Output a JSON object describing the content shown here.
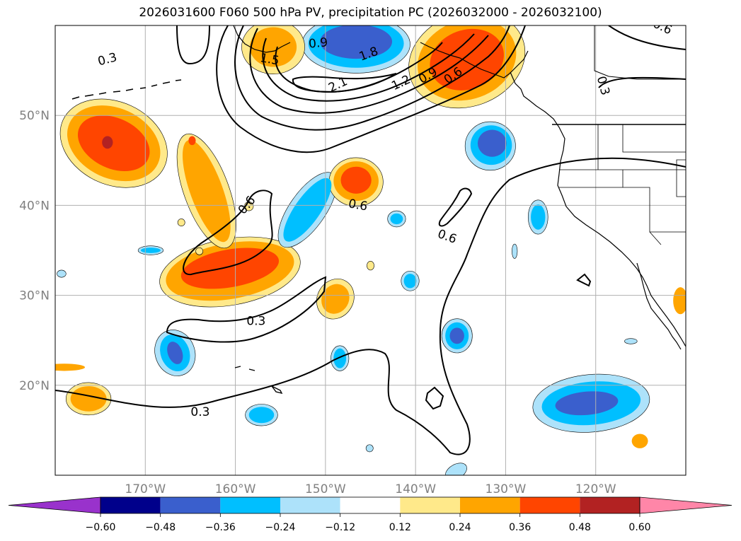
{
  "title": "2026031600 F060 500 hPa PV, precipitation PC (2026032000 - 2026032100)",
  "map": {
    "lon_range": [
      -180,
      -110
    ],
    "lat_range": [
      10,
      60
    ],
    "lat_ticks": [
      {
        "lat": 50,
        "label": "50°N"
      },
      {
        "lat": 40,
        "label": "40°N"
      },
      {
        "lat": 30,
        "label": "30°N"
      },
      {
        "lat": 20,
        "label": "20°N"
      }
    ],
    "lon_ticks": [
      {
        "lon": -170,
        "label": "170°W"
      },
      {
        "lon": -160,
        "label": "160°W"
      },
      {
        "lon": -150,
        "label": "150°W"
      },
      {
        "lon": -140,
        "label": "140°W"
      },
      {
        "lon": -130,
        "label": "130°W"
      },
      {
        "lon": -120,
        "label": "120°W"
      }
    ],
    "pv_contour_labels": [
      {
        "text": "0.3",
        "lon": -174.2,
        "lat": 56.2,
        "angle": -15
      },
      {
        "text": "1.5",
        "lon": -156.2,
        "lat": 56.2,
        "angle": 10
      },
      {
        "text": "0.9",
        "lon": -150.8,
        "lat": 58.0,
        "angle": -5
      },
      {
        "text": "1.8",
        "lon": -145.2,
        "lat": 56.8,
        "angle": -20
      },
      {
        "text": "2.1",
        "lon": -148.6,
        "lat": 53.4,
        "angle": -25
      },
      {
        "text": "1.2",
        "lon": -141.6,
        "lat": 53.6,
        "angle": -25
      },
      {
        "text": "0.9",
        "lon": -138.6,
        "lat": 54.4,
        "angle": -30
      },
      {
        "text": "0.6",
        "lon": -135.8,
        "lat": 54.4,
        "angle": -35
      },
      {
        "text": "0.6",
        "lon": -112.6,
        "lat": 59.8,
        "angle": 25
      },
      {
        "text": "0.3",
        "lon": -119.2,
        "lat": 53.3,
        "angle": 75
      },
      {
        "text": "0.6",
        "lon": -158.7,
        "lat": 40.0,
        "angle": -50
      },
      {
        "text": "0.6",
        "lon": -146.4,
        "lat": 40.0,
        "angle": 10
      },
      {
        "text": "0.6",
        "lon": -136.5,
        "lat": 36.5,
        "angle": 20
      },
      {
        "text": "0.3",
        "lon": -157.7,
        "lat": 27.1,
        "angle": 0
      },
      {
        "text": "0.3",
        "lon": -163.9,
        "lat": 17.0,
        "angle": 0
      }
    ]
  },
  "colors": {
    "levels": [
      "#9932CC",
      "#00008B",
      "#3A5FCD",
      "#00BFFF",
      "#ADE2FA",
      "#FFFFFF",
      "#FFE98A",
      "#FFA500",
      "#FF4500",
      "#B22222",
      "#FF86A8"
    ],
    "grid": "#b0b0b0",
    "tick_text": "#808080"
  },
  "colorbar": {
    "labels": [
      "−0.60",
      "−0.48",
      "−0.36",
      "−0.24",
      "−0.12",
      "0.12",
      "0.24",
      "0.36",
      "0.48",
      "0.60"
    ]
  },
  "precip_blobs": [
    {
      "lon": -173.5,
      "lat": 46.9,
      "rlon": 4.2,
      "rlat": 2.8,
      "level": 8,
      "angle": 25
    },
    {
      "lon": -173.5,
      "lat": 46.9,
      "rlon": 5.4,
      "rlat": 3.9,
      "level": 7,
      "angle": 25
    },
    {
      "lon": -173.5,
      "lat": 46.9,
      "rlon": 6.2,
      "rlat": 4.6,
      "level": 6,
      "angle": 25
    },
    {
      "lon": -174.2,
      "lat": 47.0,
      "rlon": 0.6,
      "rlat": 0.7,
      "level": 9,
      "angle": 0
    },
    {
      "lon": -160.6,
      "lat": 33.0,
      "rlon": 5.5,
      "rlat": 2.1,
      "level": 8,
      "angle": -10
    },
    {
      "lon": -160.6,
      "lat": 32.7,
      "rlon": 7.2,
      "rlat": 3.1,
      "level": 7,
      "angle": -10
    },
    {
      "lon": -160.6,
      "lat": 32.6,
      "rlon": 7.9,
      "rlat": 3.7,
      "level": 6,
      "angle": -10
    },
    {
      "lon": -163.2,
      "lat": 41.6,
      "rlon": 1.8,
      "rlat": 6.0,
      "level": 7,
      "angle": -20
    },
    {
      "lon": -163.2,
      "lat": 41.6,
      "rlon": 2.5,
      "rlat": 6.7,
      "level": 6,
      "angle": -20
    },
    {
      "lon": -164.8,
      "lat": 47.2,
      "rlon": 0.4,
      "rlat": 0.5,
      "level": 8,
      "angle": 0
    },
    {
      "lon": -146.6,
      "lat": 42.8,
      "rlon": 1.7,
      "rlat": 1.5,
      "level": 8,
      "angle": 0
    },
    {
      "lon": -146.6,
      "lat": 42.7,
      "rlon": 2.5,
      "rlat": 2.2,
      "level": 7,
      "angle": 0
    },
    {
      "lon": -146.6,
      "lat": 42.6,
      "rlon": 3.0,
      "rlat": 2.7,
      "level": 6,
      "angle": 0
    },
    {
      "lon": -148.9,
      "lat": 29.6,
      "rlon": 1.5,
      "rlat": 1.7,
      "level": 7,
      "angle": 30
    },
    {
      "lon": -148.9,
      "lat": 29.6,
      "rlon": 2.0,
      "rlat": 2.3,
      "level": 6,
      "angle": 30
    },
    {
      "lon": -155.8,
      "lat": 57.6,
      "rlon": 2.6,
      "rlat": 2.2,
      "level": 7,
      "angle": 0
    },
    {
      "lon": -155.8,
      "lat": 57.6,
      "rlon": 3.5,
      "rlat": 3.0,
      "level": 6,
      "angle": 0
    },
    {
      "lon": -134.3,
      "lat": 56.2,
      "rlon": 4.2,
      "rlat": 3.3,
      "level": 8,
      "angle": -20
    },
    {
      "lon": -134.3,
      "lat": 56.2,
      "rlon": 5.6,
      "rlat": 4.4,
      "level": 7,
      "angle": -20
    },
    {
      "lon": -134.3,
      "lat": 56.2,
      "rlon": 6.6,
      "rlat": 5.2,
      "level": 6,
      "angle": -20
    },
    {
      "lon": -176.3,
      "lat": 18.5,
      "rlon": 2.0,
      "rlat": 1.4,
      "level": 7,
      "angle": 0
    },
    {
      "lon": -176.3,
      "lat": 18.5,
      "rlon": 2.5,
      "rlat": 1.8,
      "level": 6,
      "angle": 0
    },
    {
      "lon": -179.0,
      "lat": 22.0,
      "rlon": 2.3,
      "rlat": 0.4,
      "level": 7,
      "angle": 0
    },
    {
      "lon": -115.1,
      "lat": 13.8,
      "rlon": 0.9,
      "rlat": 0.8,
      "level": 7,
      "angle": 0
    },
    {
      "lon": -110.6,
      "lat": 29.4,
      "rlon": 0.8,
      "rlat": 1.5,
      "level": 7,
      "angle": 0
    },
    {
      "lon": -145.0,
      "lat": 33.3,
      "rlon": 0.4,
      "rlat": 0.5,
      "level": 6,
      "angle": 0
    },
    {
      "lon": -166.0,
      "lat": 38.1,
      "rlon": 0.4,
      "rlat": 0.4,
      "level": 6,
      "angle": 0
    },
    {
      "lon": -164.0,
      "lat": 34.9,
      "rlon": 0.4,
      "rlat": 0.4,
      "level": 6,
      "angle": 0
    },
    {
      "lon": -158.5,
      "lat": 39.9,
      "rlon": 0.5,
      "rlat": 0.5,
      "level": 6,
      "angle": 0
    },
    {
      "lon": -146.6,
      "lat": 58.2,
      "rlon": 4.0,
      "rlat": 1.9,
      "level": 2,
      "angle": 0
    },
    {
      "lon": -146.6,
      "lat": 58.0,
      "rlon": 5.3,
      "rlat": 2.7,
      "level": 3,
      "angle": 0
    },
    {
      "lon": -146.6,
      "lat": 57.9,
      "rlon": 6.0,
      "rlat": 3.2,
      "level": 4,
      "angle": 0
    },
    {
      "lon": -131.5,
      "lat": 46.9,
      "rlon": 1.6,
      "rlat": 1.5,
      "level": 2,
      "angle": 0
    },
    {
      "lon": -131.6,
      "lat": 46.7,
      "rlon": 2.3,
      "rlat": 2.2,
      "level": 3,
      "angle": 0
    },
    {
      "lon": -131.7,
      "lat": 46.6,
      "rlon": 2.8,
      "rlat": 2.7,
      "level": 4,
      "angle": 0
    },
    {
      "lon": -121.0,
      "lat": 18.0,
      "rlon": 3.5,
      "rlat": 1.3,
      "level": 2,
      "angle": -5
    },
    {
      "lon": -120.5,
      "lat": 18.0,
      "rlon": 5.5,
      "rlat": 2.4,
      "level": 3,
      "angle": -5
    },
    {
      "lon": -120.5,
      "lat": 18.0,
      "rlon": 6.5,
      "rlat": 3.2,
      "level": 4,
      "angle": -5
    },
    {
      "lon": -166.7,
      "lat": 23.6,
      "rlon": 0.8,
      "rlat": 1.3,
      "level": 2,
      "angle": -20
    },
    {
      "lon": -166.7,
      "lat": 23.6,
      "rlon": 1.6,
      "rlat": 2.1,
      "level": 3,
      "angle": -20
    },
    {
      "lon": -166.7,
      "lat": 23.6,
      "rlon": 2.2,
      "rlat": 2.6,
      "level": 4,
      "angle": -20
    },
    {
      "lon": -152.0,
      "lat": 39.5,
      "rlon": 1.4,
      "rlat": 4.2,
      "level": 3,
      "angle": 35
    },
    {
      "lon": -152.0,
      "lat": 39.5,
      "rlon": 2.0,
      "rlat": 4.9,
      "level": 4,
      "angle": 35
    },
    {
      "lon": -135.4,
      "lat": 25.5,
      "rlon": 0.8,
      "rlat": 0.9,
      "level": 2,
      "angle": 0
    },
    {
      "lon": -135.4,
      "lat": 25.5,
      "rlon": 1.3,
      "rlat": 1.5,
      "level": 3,
      "angle": 0
    },
    {
      "lon": -135.4,
      "lat": 25.5,
      "rlon": 1.7,
      "rlat": 1.9,
      "level": 4,
      "angle": 0
    },
    {
      "lon": -126.4,
      "lat": 38.7,
      "rlon": 0.8,
      "rlat": 1.4,
      "level": 3,
      "angle": 0
    },
    {
      "lon": -126.4,
      "lat": 38.7,
      "rlon": 1.1,
      "rlat": 1.9,
      "level": 4,
      "angle": 0
    },
    {
      "lon": -157.1,
      "lat": 16.7,
      "rlon": 1.4,
      "rlat": 0.9,
      "level": 3,
      "angle": 0
    },
    {
      "lon": -157.1,
      "lat": 16.7,
      "rlon": 1.8,
      "rlat": 1.2,
      "level": 4,
      "angle": 0
    },
    {
      "lon": -140.6,
      "lat": 31.6,
      "rlon": 0.7,
      "rlat": 0.8,
      "level": 3,
      "angle": 0
    },
    {
      "lon": -140.6,
      "lat": 31.6,
      "rlon": 1.0,
      "rlat": 1.1,
      "level": 4,
      "angle": 0
    },
    {
      "lon": -142.1,
      "lat": 38.5,
      "rlon": 0.7,
      "rlat": 0.6,
      "level": 3,
      "angle": 0
    },
    {
      "lon": -142.1,
      "lat": 38.5,
      "rlon": 1.0,
      "rlat": 0.9,
      "level": 4,
      "angle": 0
    },
    {
      "lon": -148.4,
      "lat": 23.0,
      "rlon": 0.7,
      "rlat": 1.1,
      "level": 3,
      "angle": 0
    },
    {
      "lon": -148.4,
      "lat": 23.0,
      "rlon": 1.0,
      "rlat": 1.4,
      "level": 4,
      "angle": 0
    },
    {
      "lon": -169.4,
      "lat": 35.0,
      "rlon": 1.1,
      "rlat": 0.3,
      "level": 3,
      "angle": 0
    },
    {
      "lon": -169.4,
      "lat": 35.0,
      "rlon": 1.4,
      "rlat": 0.5,
      "level": 4,
      "angle": 0
    },
    {
      "lon": -135.5,
      "lat": 10.4,
      "rlon": 1.3,
      "rlat": 0.8,
      "level": 4,
      "angle": -30
    },
    {
      "lon": -179.3,
      "lat": 32.4,
      "rlon": 0.5,
      "rlat": 0.4,
      "level": 4,
      "angle": 0
    },
    {
      "lon": -129.0,
      "lat": 34.9,
      "rlon": 0.3,
      "rlat": 0.8,
      "level": 4,
      "angle": 0
    },
    {
      "lon": -145.1,
      "lat": 13.0,
      "rlon": 0.4,
      "rlat": 0.4,
      "level": 4,
      "angle": 0
    },
    {
      "lon": -116.1,
      "lat": 24.9,
      "rlon": 0.7,
      "rlat": 0.3,
      "level": 4,
      "angle": 0
    }
  ]
}
